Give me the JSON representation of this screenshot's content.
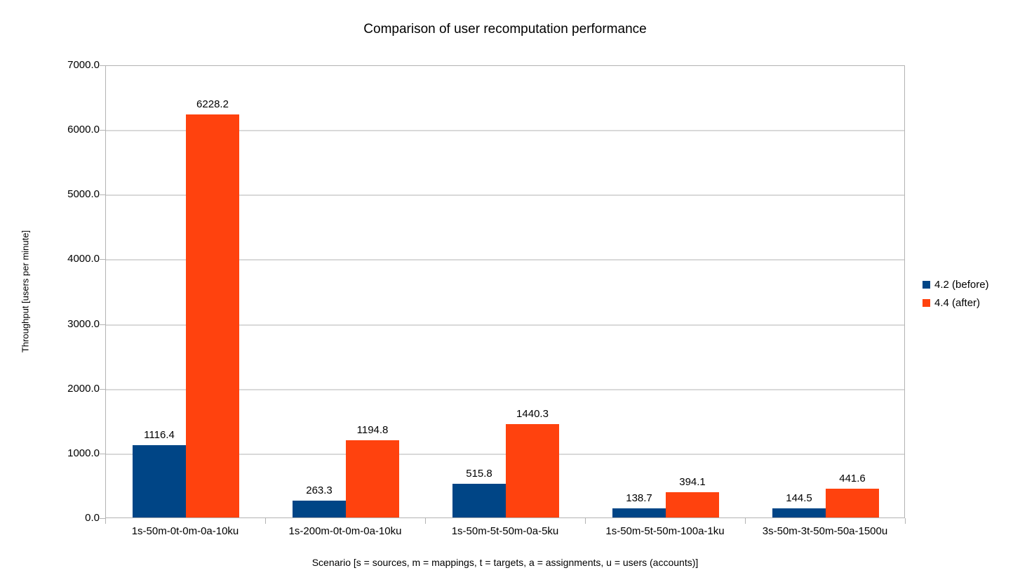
{
  "chart_data": {
    "type": "bar",
    "title": "Comparison of user recomputation performance",
    "xlabel": "Scenario [s = sources, m = mappings, t = targets, a = assignments, u = users (accounts)]",
    "ylabel": "Throughput [users per minute]",
    "categories": [
      "1s-50m-0t-0m-0a-10ku",
      "1s-200m-0t-0m-0a-10ku",
      "1s-50m-5t-50m-0a-5ku",
      "1s-50m-5t-50m-100a-1ku",
      "3s-50m-3t-50m-50a-1500u"
    ],
    "series": [
      {
        "name": "4.2 (before)",
        "color": "#004586",
        "values": [
          1116.4,
          263.3,
          515.8,
          138.7,
          144.5
        ]
      },
      {
        "name": "4.4 (after)",
        "color": "#FF420E",
        "values": [
          6228.2,
          1194.8,
          1440.3,
          394.1,
          441.6
        ]
      }
    ],
    "ylim": [
      0,
      7000
    ],
    "y_tick_step": 1000,
    "y_tick_decimals": 1,
    "grid": true,
    "data_labels": true,
    "legend_position": "right",
    "colors": {
      "gridline": "#d9d9d9",
      "axis": "#b3b3b3",
      "text": "#000000"
    }
  }
}
